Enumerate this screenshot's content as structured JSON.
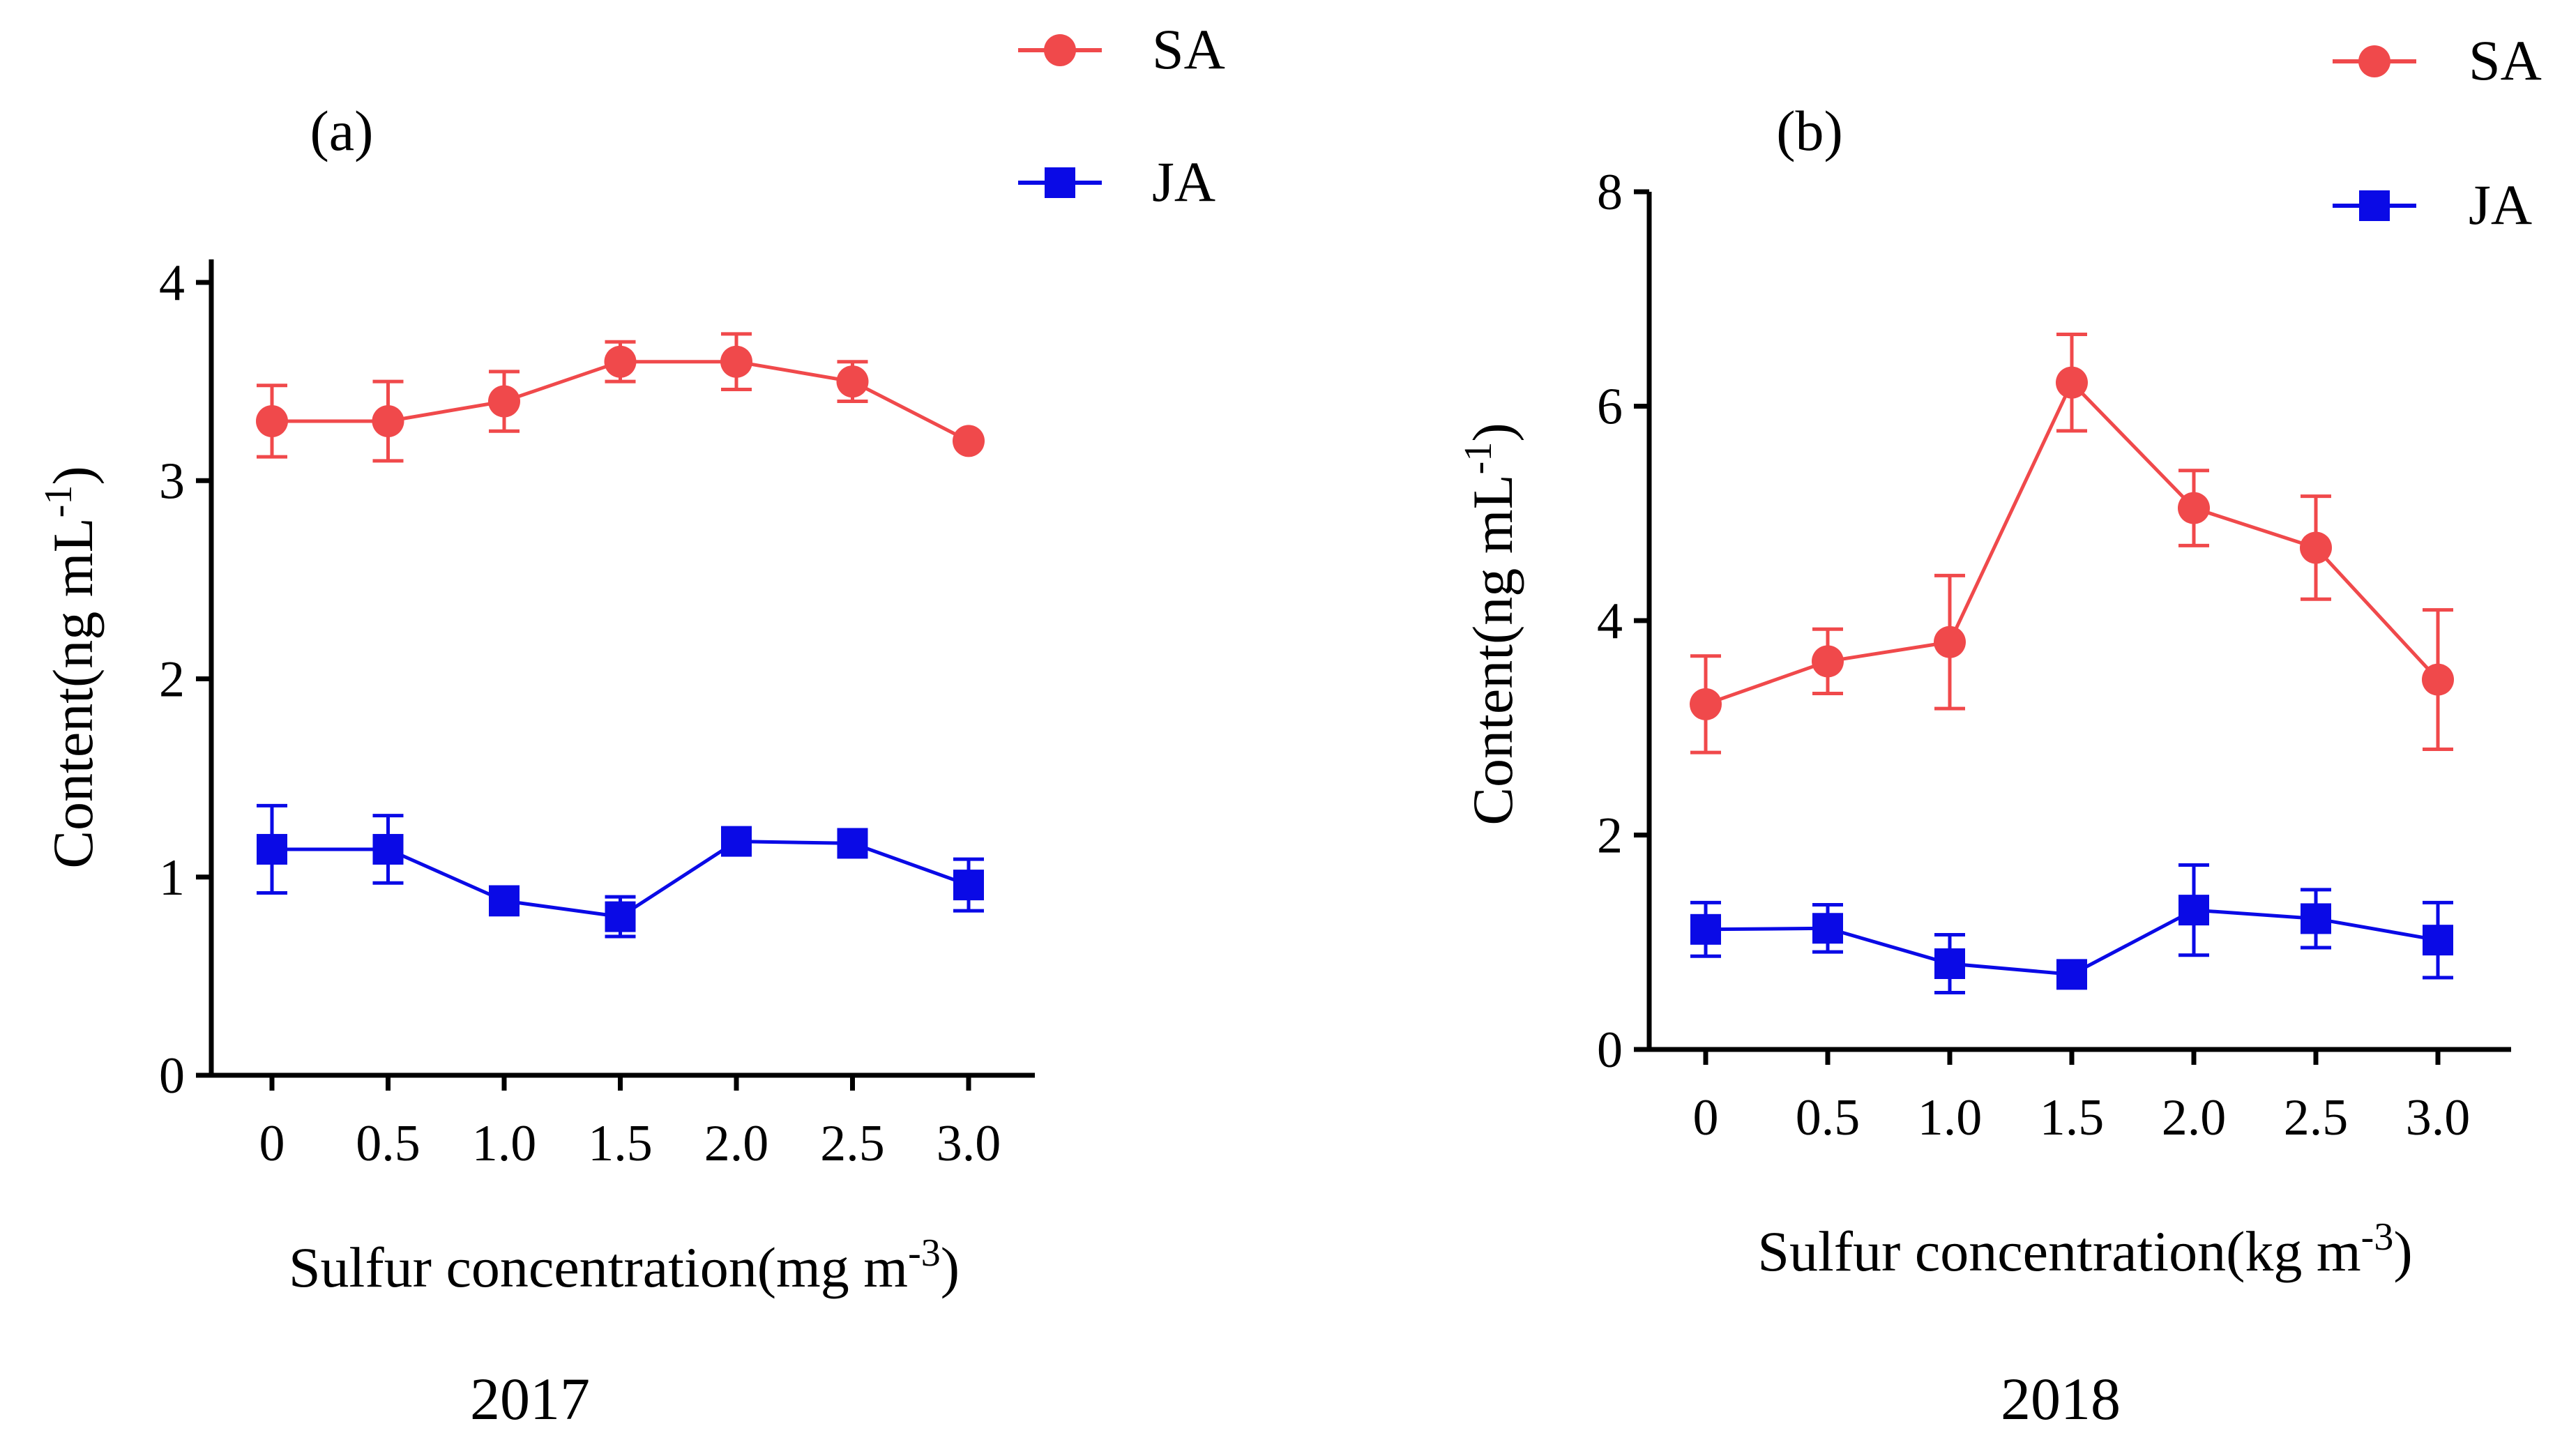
{
  "figure": {
    "colors": {
      "SA": "#f0494b",
      "JA": "#0a0ae6"
    },
    "charts": [
      {
        "id": "a",
        "type": "line",
        "panel_label": "(a)",
        "caption": "2017",
        "x_tick_labels": [
          "0",
          "0.5",
          "1.0",
          "1.5",
          "2.0",
          "2.5",
          "3.0"
        ],
        "y_tick_labels": [
          "0",
          "1",
          "2",
          "3",
          "4"
        ],
        "ylim": [
          0,
          4
        ],
        "xlabel": "Sulfur concentration(mg m",
        "xlabel_sup": "-3",
        "xlabel_end": ")",
        "ylabel": "Content(ng mL",
        "ylabel_sup": "-1",
        "ylabel_end": ")",
        "legend": [
          "SA",
          "JA"
        ],
        "series": [
          {
            "name": "SA",
            "marker": "circle",
            "values": [
              3.3,
              3.3,
              3.4,
              3.6,
              3.6,
              3.5,
              3.2
            ],
            "errors": [
              0.18,
              0.2,
              0.15,
              0.1,
              0.14,
              0.1,
              0.0
            ]
          },
          {
            "name": "JA",
            "marker": "square",
            "values": [
              1.14,
              1.14,
              0.88,
              0.8,
              1.18,
              1.17,
              0.96
            ],
            "errors": [
              0.22,
              0.17,
              0.07,
              0.1,
              0.04,
              0.04,
              0.13
            ]
          }
        ]
      },
      {
        "id": "b",
        "type": "line",
        "panel_label": "(b)",
        "caption": "2018",
        "x_tick_labels": [
          "0",
          "0.5",
          "1.0",
          "1.5",
          "2.0",
          "2.5",
          "3.0"
        ],
        "y_tick_labels": [
          "0",
          "2",
          "4",
          "6",
          "8"
        ],
        "ylim": [
          0,
          8
        ],
        "xlabel": "Sulfur concentration(kg m",
        "xlabel_sup": "-3",
        "xlabel_end": ")",
        "ylabel": "Content(ng mL",
        "ylabel_sup": "-1",
        "ylabel_end": ")",
        "legend": [
          "SA",
          "JA"
        ],
        "series": [
          {
            "name": "SA",
            "marker": "circle",
            "values": [
              3.22,
              3.62,
              3.8,
              6.22,
              5.05,
              4.68,
              3.45
            ],
            "errors": [
              0.45,
              0.3,
              0.62,
              0.45,
              0.35,
              0.48,
              0.65
            ]
          },
          {
            "name": "JA",
            "marker": "square",
            "values": [
              1.12,
              1.13,
              0.8,
              0.7,
              1.3,
              1.22,
              1.02
            ],
            "errors": [
              0.25,
              0.22,
              0.27,
              0.08,
              0.42,
              0.27,
              0.35
            ]
          }
        ]
      }
    ]
  }
}
